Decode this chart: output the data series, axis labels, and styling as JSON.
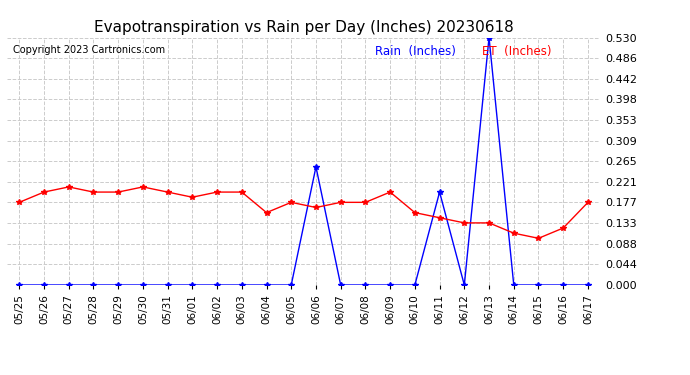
{
  "title": "Evapotranspiration vs Rain per Day (Inches) 20230618",
  "copyright": "Copyright 2023 Cartronics.com",
  "labels": [
    "05/25",
    "05/26",
    "05/27",
    "05/28",
    "05/29",
    "05/30",
    "05/31",
    "06/01",
    "06/02",
    "06/03",
    "06/04",
    "06/05",
    "06/06",
    "06/07",
    "06/08",
    "06/09",
    "06/10",
    "06/11",
    "06/12",
    "06/13",
    "06/14",
    "06/15",
    "06/16",
    "06/17"
  ],
  "rain": [
    0.0,
    0.0,
    0.0,
    0.0,
    0.0,
    0.0,
    0.0,
    0.0,
    0.0,
    0.0,
    0.0,
    0.0,
    0.253,
    0.0,
    0.0,
    0.0,
    0.0,
    0.199,
    0.0,
    0.53,
    0.0,
    0.0,
    0.0,
    0.0
  ],
  "et": [
    0.177,
    0.199,
    0.21,
    0.199,
    0.199,
    0.21,
    0.199,
    0.188,
    0.199,
    0.199,
    0.155,
    0.177,
    0.166,
    0.177,
    0.177,
    0.199,
    0.155,
    0.144,
    0.133,
    0.133,
    0.111,
    0.1,
    0.122,
    0.177
  ],
  "ylim": [
    0.0,
    0.53
  ],
  "yticks": [
    0.0,
    0.044,
    0.088,
    0.133,
    0.177,
    0.221,
    0.265,
    0.309,
    0.353,
    0.398,
    0.442,
    0.486,
    0.53
  ],
  "rain_color": "#0000ff",
  "et_color": "#ff0000",
  "grid_color": "#cccccc",
  "bg_color": "#ffffff",
  "title_fontsize": 11,
  "copyright_text": "Copyright 2023 Cartronics.com",
  "legend_rain": "Rain  (Inches)",
  "legend_et": "ET  (Inches)"
}
